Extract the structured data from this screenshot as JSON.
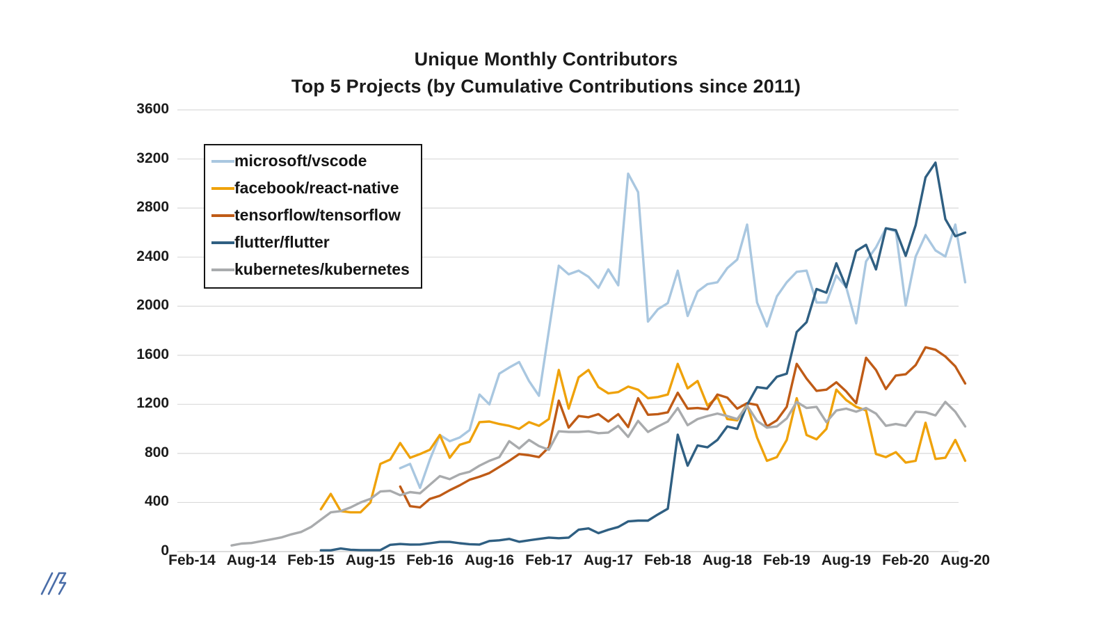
{
  "title": {
    "line1": "Unique Monthly Contributors",
    "line2": "Top 5 Projects (by Cumulative Contributions since 2011)"
  },
  "chart_data": {
    "type": "line",
    "title": "Unique Monthly Contributors — Top 5 Projects (by Cumulative Contributions since 2011)",
    "x_unit": "months since Feb-2014",
    "x_tick_every": 6,
    "x_tick_labels": [
      "Feb-14",
      "Aug-14",
      "Feb-15",
      "Aug-15",
      "Feb-16",
      "Aug-16",
      "Feb-17",
      "Aug-17",
      "Feb-18",
      "Aug-18",
      "Feb-19",
      "Aug-19",
      "Feb-20",
      "Aug-20"
    ],
    "y_ticks": [
      0,
      400,
      800,
      1200,
      1600,
      2000,
      2400,
      2800,
      3200,
      3600
    ],
    "ylim": [
      0,
      3600
    ],
    "grid": "horizontal",
    "grid_color": "#d9d9d9",
    "zero_line_color": "#c6c6c6",
    "legend_position": "upper-left",
    "series": [
      {
        "name": "microsoft/vscode",
        "color": "#a9c7e0",
        "start_month_index": 21,
        "values": [
          680,
          715,
          520,
          750,
          950,
          900,
          930,
          990,
          1280,
          1200,
          1450,
          1500,
          1545,
          1390,
          1270,
          1800,
          2330,
          2260,
          2290,
          2240,
          2150,
          2300,
          2170,
          3080,
          2930,
          1875,
          1975,
          2025,
          2290,
          1920,
          2120,
          2180,
          2195,
          2310,
          2380,
          2665,
          2030,
          1835,
          2080,
          2195,
          2280,
          2290,
          2030,
          2030,
          2250,
          2155,
          1860,
          2365,
          2480,
          2635,
          2610,
          2005,
          2405,
          2580,
          2455,
          2405,
          2665,
          2195
        ]
      },
      {
        "name": "facebook/react-native",
        "color": "#efa20b",
        "start_month_index": 13,
        "values": [
          345,
          470,
          330,
          320,
          320,
          400,
          715,
          750,
          885,
          765,
          795,
          830,
          950,
          765,
          870,
          895,
          1055,
          1060,
          1040,
          1025,
          1000,
          1055,
          1025,
          1080,
          1480,
          1165,
          1420,
          1480,
          1340,
          1290,
          1300,
          1345,
          1320,
          1250,
          1260,
          1280,
          1530,
          1330,
          1390,
          1190,
          1260,
          1080,
          1070,
          1200,
          930,
          740,
          770,
          910,
          1250,
          950,
          915,
          1000,
          1320,
          1235,
          1180,
          1150,
          795,
          770,
          810,
          725,
          740,
          1050,
          755,
          765,
          910,
          740
        ]
      },
      {
        "name": "tensorflow/tensorflow",
        "color": "#bf5b16",
        "start_month_index": 21,
        "values": [
          530,
          370,
          360,
          430,
          455,
          500,
          540,
          585,
          610,
          640,
          690,
          740,
          795,
          785,
          770,
          850,
          1230,
          1010,
          1105,
          1095,
          1120,
          1060,
          1120,
          1015,
          1250,
          1115,
          1120,
          1135,
          1295,
          1165,
          1170,
          1160,
          1280,
          1255,
          1165,
          1210,
          1195,
          1020,
          1070,
          1180,
          1530,
          1410,
          1310,
          1320,
          1380,
          1305,
          1210,
          1580,
          1480,
          1325,
          1435,
          1445,
          1520,
          1665,
          1645,
          1590,
          1510,
          1370
        ]
      },
      {
        "name": "flutter/flutter",
        "color": "#2f5f82",
        "start_month_index": 13,
        "values": [
          10,
          10,
          25,
          15,
          12,
          12,
          12,
          55,
          62,
          57,
          58,
          68,
          79,
          79,
          68,
          60,
          57,
          86,
          92,
          103,
          80,
          92,
          103,
          114,
          109,
          114,
          178,
          189,
          150,
          178,
          200,
          246,
          252,
          252,
          303,
          349,
          953,
          700,
          865,
          850,
          910,
          1020,
          1000,
          1195,
          1340,
          1330,
          1425,
          1450,
          1790,
          1870,
          2140,
          2110,
          2350,
          2155,
          2450,
          2500,
          2300,
          2635,
          2620,
          2410,
          2660,
          3050,
          3170,
          2710,
          2570,
          2600
        ]
      },
      {
        "name": "kubernetes/kubernetes",
        "color": "#a9abad",
        "start_month_index": 4,
        "values": [
          50,
          65,
          70,
          85,
          100,
          115,
          140,
          160,
          200,
          260,
          320,
          330,
          360,
          400,
          430,
          490,
          495,
          460,
          485,
          475,
          545,
          615,
          590,
          630,
          650,
          700,
          740,
          770,
          900,
          840,
          910,
          860,
          830,
          980,
          975,
          975,
          980,
          965,
          970,
          1025,
          935,
          1065,
          975,
          1020,
          1060,
          1170,
          1030,
          1080,
          1105,
          1125,
          1105,
          1080,
          1190,
          1065,
          1010,
          1020,
          1085,
          1220,
          1170,
          1180,
          1055,
          1150,
          1165,
          1140,
          1170,
          1125,
          1025,
          1040,
          1025,
          1140,
          1135,
          1110,
          1220,
          1140,
          1020
        ]
      }
    ]
  },
  "logo": {
    "name": "double-slash-logo",
    "color": "#4a6da8"
  }
}
